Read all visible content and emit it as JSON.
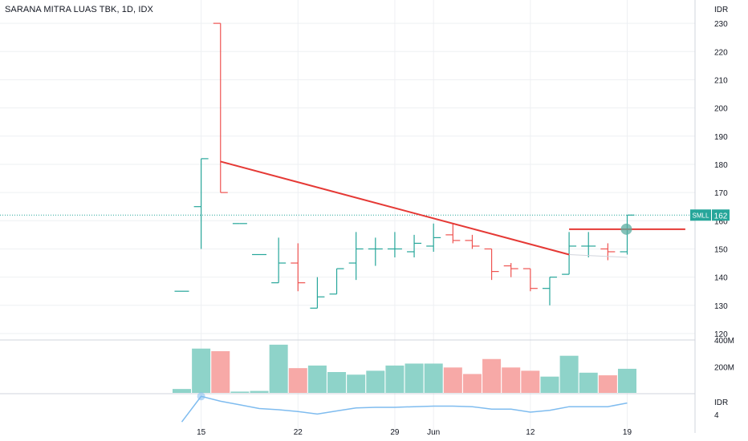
{
  "chart_data": {
    "type": "ohlc",
    "title": "SARANA MITRA LUAS TBK, 1D, IDX",
    "currency": "IDR",
    "price_axis": {
      "ylim": [
        118,
        236
      ],
      "ticks": [
        120,
        130,
        140,
        150,
        160,
        170,
        180,
        190,
        200,
        210,
        220,
        230
      ]
    },
    "x_tick_labels": [
      {
        "label": "15",
        "bar": 1
      },
      {
        "label": "22",
        "bar": 6
      },
      {
        "label": "29",
        "bar": 11
      },
      {
        "label": "Jun",
        "bar": 13
      },
      {
        "label": "12",
        "bar": 18
      },
      {
        "label": "19",
        "bar": 23
      }
    ],
    "bars": [
      {
        "o": 135,
        "h": 135,
        "l": 135,
        "c": 135,
        "up": true
      },
      {
        "o": 165,
        "h": 182,
        "l": 150,
        "c": 182,
        "up": true
      },
      {
        "o": 230,
        "h": 230,
        "l": 170,
        "c": 170,
        "up": false
      },
      {
        "o": 159,
        "h": 159,
        "l": 159,
        "c": 159,
        "up": true
      },
      {
        "o": 148,
        "h": 148,
        "l": 148,
        "c": 148,
        "up": true
      },
      {
        "o": 138,
        "h": 154,
        "l": 138,
        "c": 145,
        "up": true
      },
      {
        "o": 145,
        "h": 152,
        "l": 135,
        "c": 138,
        "up": false
      },
      {
        "o": 129,
        "h": 140,
        "l": 129,
        "c": 133,
        "up": true
      },
      {
        "o": 134,
        "h": 143,
        "l": 134,
        "c": 143,
        "up": true
      },
      {
        "o": 145,
        "h": 156,
        "l": 139,
        "c": 150,
        "up": true
      },
      {
        "o": 150,
        "h": 154,
        "l": 144,
        "c": 150,
        "up": true
      },
      {
        "o": 150,
        "h": 156,
        "l": 147,
        "c": 150,
        "up": true
      },
      {
        "o": 149,
        "h": 155,
        "l": 147,
        "c": 152,
        "up": true
      },
      {
        "o": 151,
        "h": 159,
        "l": 149,
        "c": 154,
        "up": true
      },
      {
        "o": 155,
        "h": 159,
        "l": 152,
        "c": 153,
        "up": false
      },
      {
        "o": 153,
        "h": 155,
        "l": 150,
        "c": 151,
        "up": false
      },
      {
        "o": 150,
        "h": 150,
        "l": 139,
        "c": 142,
        "up": false
      },
      {
        "o": 144,
        "h": 145,
        "l": 140,
        "c": 143,
        "up": false
      },
      {
        "o": 143,
        "h": 143,
        "l": 135,
        "c": 136,
        "up": false
      },
      {
        "o": 136,
        "h": 140,
        "l": 130,
        "c": 140,
        "up": true
      },
      {
        "o": 141,
        "h": 156,
        "l": 141,
        "c": 151,
        "up": true
      },
      {
        "o": 151,
        "h": 156,
        "l": 147,
        "c": 151,
        "up": true
      },
      {
        "o": 150,
        "h": 152,
        "l": 146,
        "c": 149,
        "up": false
      },
      {
        "o": 149,
        "h": 162,
        "l": 148,
        "c": 162,
        "up": true
      }
    ],
    "volume": {
      "tick_labels": [
        "400M",
        "200M"
      ],
      "ylim": [
        0,
        400
      ],
      "values": [
        30,
        340,
        320,
        10,
        15,
        370,
        190,
        210,
        160,
        140,
        170,
        210,
        225,
        225,
        195,
        145,
        260,
        195,
        170,
        125,
        285,
        155,
        135,
        185
      ]
    },
    "indicator": {
      "label": "IDR",
      "tick_value": "4",
      "values": [
        2.0,
        6.2,
        5.4,
        4.8,
        4.2,
        4.0,
        3.7,
        3.3,
        3.8,
        4.3,
        4.4,
        4.4,
        4.5,
        4.6,
        4.6,
        4.5,
        4.1,
        4.1,
        3.6,
        3.9,
        4.5,
        4.5,
        4.5,
        5.1
      ]
    },
    "trendline": {
      "from": {
        "bar": 2,
        "price": 181
      },
      "to": {
        "bar": 20,
        "price": 148
      }
    },
    "resistance": {
      "from_bar": 20,
      "to_bar": 26,
      "price": 157
    },
    "current_price": {
      "symbol": "SMLL",
      "value": 162
    },
    "colors": {
      "up": "#26a69a",
      "down": "#ef5350",
      "vol_up": "#8ed3c9",
      "vol_down": "#f7a9a7",
      "indicator": "#7fbcef",
      "trend": "#e53935",
      "grid": "#eef0f3",
      "text": "#131722"
    }
  }
}
